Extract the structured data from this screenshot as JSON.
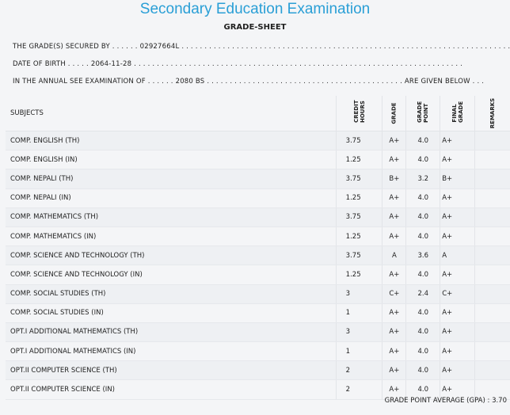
{
  "title": "Secondary Education Examination",
  "subtitle": "GRADE-SHEET",
  "info": {
    "grade_secured_label": "THE GRADE(S) SECURED BY . . . . . .",
    "symbol_no": "02927664L",
    "grade_secured_tail": ". . . . . . . . . . . . . . . . . . . . . . . . . . . . . . . . . . . . . . . . . . . . . . . . . . . . . . . . . . . . . . . . . . . . . . . .",
    "dob_label": "DATE OF BIRTH . . . . .",
    "dob": "2064-11-28",
    "dob_tail": ". . . . . . . . . . . . . . . . . . . . . . . . . . . . . . . . . . . . . . . . . . . . . . . . . . . . . . . . . . . . . . . . . . . . . . . .",
    "exam_label": "IN THE ANNUAL SEE EXAMINATION OF . . . . . .",
    "exam_year": "2080 BS",
    "exam_tail": ". . . . . . . . . . . . . . . . . . . . . . . . . . . . . . . . . . . . . . . . . . . ARE GIVEN BELOW . . ."
  },
  "headers": {
    "subjects": "SUBJECTS",
    "credit_hours": "CREDIT HOURS",
    "grade": "GRADE",
    "grade_point": "GRADE POINT",
    "final_grade": "FINAL GRADE",
    "remarks": "REMARKS"
  },
  "rows": [
    {
      "subject": "COMP. ENGLISH (TH)",
      "credit": "3.75",
      "grade": "A+",
      "gp": "4.0",
      "final": "A+"
    },
    {
      "subject": "COMP. ENGLISH (IN)",
      "credit": "1.25",
      "grade": "A+",
      "gp": "4.0",
      "final": "A+"
    },
    {
      "subject": "COMP. NEPALI (TH)",
      "credit": "3.75",
      "grade": "B+",
      "gp": "3.2",
      "final": "B+"
    },
    {
      "subject": "COMP. NEPALI (IN)",
      "credit": "1.25",
      "grade": "A+",
      "gp": "4.0",
      "final": "A+"
    },
    {
      "subject": "COMP. MATHEMATICS (TH)",
      "credit": "3.75",
      "grade": "A+",
      "gp": "4.0",
      "final": "A+"
    },
    {
      "subject": "COMP. MATHEMATICS (IN)",
      "credit": "1.25",
      "grade": "A+",
      "gp": "4.0",
      "final": "A+"
    },
    {
      "subject": "COMP. SCIENCE AND TECHNOLOGY (TH)",
      "credit": "3.75",
      "grade": "A",
      "gp": "3.6",
      "final": "A"
    },
    {
      "subject": "COMP. SCIENCE AND TECHNOLOGY (IN)",
      "credit": "1.25",
      "grade": "A+",
      "gp": "4.0",
      "final": "A+"
    },
    {
      "subject": "COMP. SOCIAL STUDIES (TH)",
      "credit": "3",
      "grade": "C+",
      "gp": "2.4",
      "final": "C+"
    },
    {
      "subject": "COMP. SOCIAL STUDIES (IN)",
      "credit": "1",
      "grade": "A+",
      "gp": "4.0",
      "final": "A+"
    },
    {
      "subject": "OPT.I ADDITIONAL MATHEMATICS (TH)",
      "credit": "3",
      "grade": "A+",
      "gp": "4.0",
      "final": "A+"
    },
    {
      "subject": "OPT.I ADDITIONAL MATHEMATICS (IN)",
      "credit": "1",
      "grade": "A+",
      "gp": "4.0",
      "final": "A+"
    },
    {
      "subject": "OPT.II COMPUTER SCIENCE (TH)",
      "credit": "2",
      "grade": "A+",
      "gp": "4.0",
      "final": "A+"
    },
    {
      "subject": "OPT.II COMPUTER SCIENCE (IN)",
      "credit": "2",
      "grade": "A+",
      "gp": "4.0",
      "final": "A+"
    }
  ],
  "gpa": {
    "label": "GRADE POINT AVERAGE (GPA) :",
    "value": "3.70"
  },
  "colors": {
    "title": "#2a9fd6"
  }
}
